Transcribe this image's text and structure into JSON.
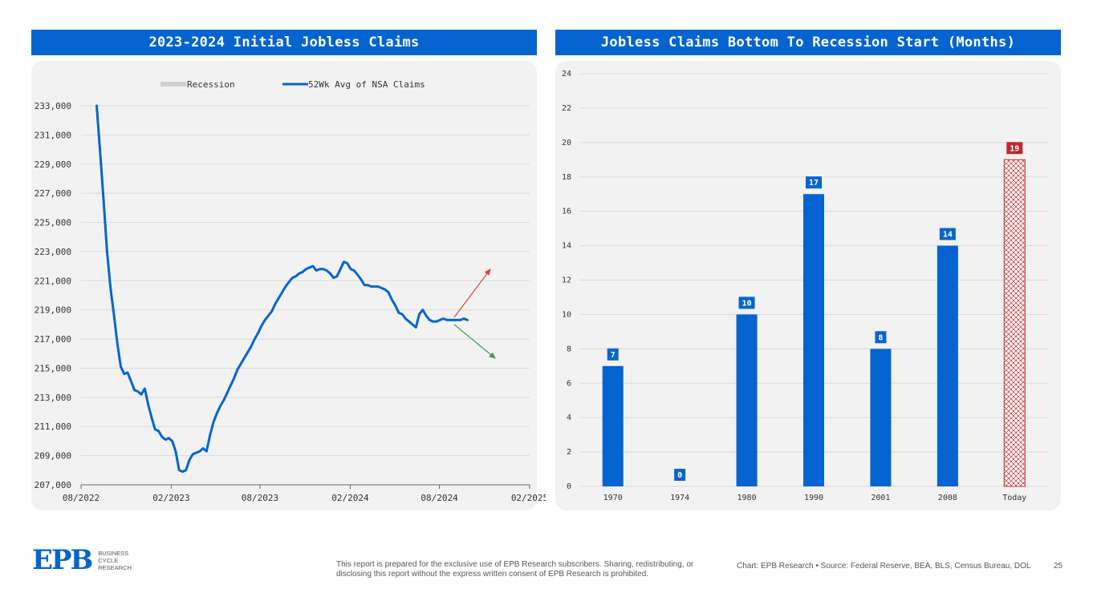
{
  "left_title": "2023-2024 Initial Jobless Claims",
  "right_title": "Jobless Claims Bottom To Recession Start (Months)",
  "colors": {
    "brand_blue": "#0564cf",
    "recession_gray": "#cfcfcf",
    "highlight_red": "#c0292b",
    "up_arrow": "#d64545",
    "down_arrow": "#3c9a5f"
  },
  "chart_data": [
    {
      "type": "line",
      "legend": [
        "Recession",
        "52Wk Avg of NSA Claims"
      ],
      "legend_position": "top-center",
      "xlabel": "",
      "ylabel": "",
      "x_tick_labels": [
        "08/2022",
        "02/2023",
        "08/2023",
        "02/2024",
        "08/2024",
        "02/2025"
      ],
      "y_tick_labels": [
        "207,000",
        "209,000",
        "211,000",
        "213,000",
        "215,000",
        "217,000",
        "219,000",
        "221,000",
        "223,000",
        "225,000",
        "227,000",
        "229,000",
        "231,000",
        "233,000"
      ],
      "ylim": [
        207000,
        233000
      ],
      "xlim": [
        "2022-08-01",
        "2025-02-01"
      ],
      "grid": true,
      "series": [
        {
          "name": "52Wk Avg of NSA Claims",
          "x": [
            "2022-09-02",
            "2022-09-09",
            "2022-09-16",
            "2022-09-23",
            "2022-09-30",
            "2022-10-07",
            "2022-10-14",
            "2022-10-21",
            "2022-10-28",
            "2022-11-04",
            "2022-11-11",
            "2022-11-18",
            "2022-11-25",
            "2022-12-02",
            "2022-12-09",
            "2022-12-16",
            "2022-12-23",
            "2022-12-30",
            "2023-01-06",
            "2023-01-13",
            "2023-01-20",
            "2023-01-27",
            "2023-02-03",
            "2023-02-10",
            "2023-02-17",
            "2023-02-24",
            "2023-03-03",
            "2023-03-10",
            "2023-03-17",
            "2023-03-24",
            "2023-03-31",
            "2023-04-07",
            "2023-04-14",
            "2023-04-21",
            "2023-04-28",
            "2023-05-05",
            "2023-05-12",
            "2023-05-19",
            "2023-05-26",
            "2023-06-02",
            "2023-06-09",
            "2023-06-16",
            "2023-06-23",
            "2023-06-30",
            "2023-07-07",
            "2023-07-14",
            "2023-07-21",
            "2023-07-28",
            "2023-08-04",
            "2023-08-11",
            "2023-08-18",
            "2023-08-25",
            "2023-09-01",
            "2023-09-08",
            "2023-09-15",
            "2023-09-22",
            "2023-09-29",
            "2023-10-06",
            "2023-10-13",
            "2023-10-20",
            "2023-10-27",
            "2023-11-03",
            "2023-11-10",
            "2023-11-17",
            "2023-11-24",
            "2023-12-01",
            "2023-12-08",
            "2023-12-15",
            "2023-12-22",
            "2023-12-29",
            "2024-01-05",
            "2024-01-12",
            "2024-01-19",
            "2024-01-26",
            "2024-02-02",
            "2024-02-09",
            "2024-02-16",
            "2024-02-23",
            "2024-03-01",
            "2024-03-08",
            "2024-03-15",
            "2024-03-22",
            "2024-03-29",
            "2024-04-05",
            "2024-04-12",
            "2024-04-19",
            "2024-04-26",
            "2024-05-03",
            "2024-05-10",
            "2024-05-17",
            "2024-05-24",
            "2024-05-31",
            "2024-06-07",
            "2024-06-14",
            "2024-06-21",
            "2024-06-28",
            "2024-07-05",
            "2024-07-12",
            "2024-07-19",
            "2024-07-26",
            "2024-08-02",
            "2024-08-09",
            "2024-08-16",
            "2024-08-23",
            "2024-08-30",
            "2024-09-06",
            "2024-09-13",
            "2024-09-20",
            "2024-09-27"
          ],
          "values": [
            233000,
            229800,
            226500,
            223000,
            220500,
            218700,
            216700,
            215100,
            214600,
            214700,
            214100,
            213500,
            213400,
            213200,
            213600,
            212500,
            211600,
            210800,
            210700,
            210300,
            210100,
            210200,
            210000,
            209300,
            208000,
            207900,
            208000,
            208700,
            209100,
            209200,
            209300,
            209500,
            209300,
            210400,
            211300,
            211900,
            212400,
            212800,
            213300,
            213800,
            214300,
            214900,
            215300,
            215700,
            216100,
            216500,
            217000,
            217400,
            217900,
            218300,
            218600,
            218900,
            219400,
            219800,
            220200,
            220600,
            220900,
            221200,
            221300,
            221500,
            221600,
            221800,
            221900,
            222000,
            221700,
            221800,
            221800,
            221700,
            221500,
            221200,
            221300,
            221800,
            222300,
            222200,
            221800,
            221700,
            221400,
            221100,
            220700,
            220700,
            220600,
            220600,
            220600,
            220500,
            220400,
            220200,
            219700,
            219300,
            218800,
            218700,
            218400,
            218200,
            218000,
            217800,
            218700,
            219000,
            218600,
            218300,
            218200,
            218200,
            218300,
            218400,
            218300,
            218300,
            218300,
            218300,
            218300,
            218400,
            218300
          ]
        }
      ],
      "annotations": [
        "up-arrow",
        "down-arrow"
      ]
    },
    {
      "type": "bar",
      "categories": [
        "1970",
        "1974",
        "1980",
        "1990",
        "2001",
        "2008",
        "Today"
      ],
      "values": [
        7,
        0,
        10,
        17,
        8,
        14,
        19
      ],
      "data_labels": [
        "7",
        "0",
        "10",
        "17",
        "8",
        "14",
        "19"
      ],
      "highlight": "Today",
      "y_tick_labels": [
        "0",
        "2",
        "4",
        "6",
        "8",
        "10",
        "12",
        "14",
        "16",
        "18",
        "20",
        "22",
        "24"
      ],
      "ylim": [
        0,
        24
      ],
      "grid": true,
      "xlabel": "",
      "ylabel": ""
    }
  ],
  "footer": {
    "logo_text": "EPB",
    "logo_lines": [
      "BUSINESS",
      "CYCLE",
      "RESEARCH"
    ],
    "disclaimer": "This report is prepared for the exclusive use of EPB Research subscribers. Sharing, redistributing, or disclosing this report without the express written consent of EPB Research is prohibited.",
    "source": "Chart: EPB Research  •  Source: Federal Reserve, BEA, BLS, Census Bureau, DOL",
    "page_number": "25"
  }
}
